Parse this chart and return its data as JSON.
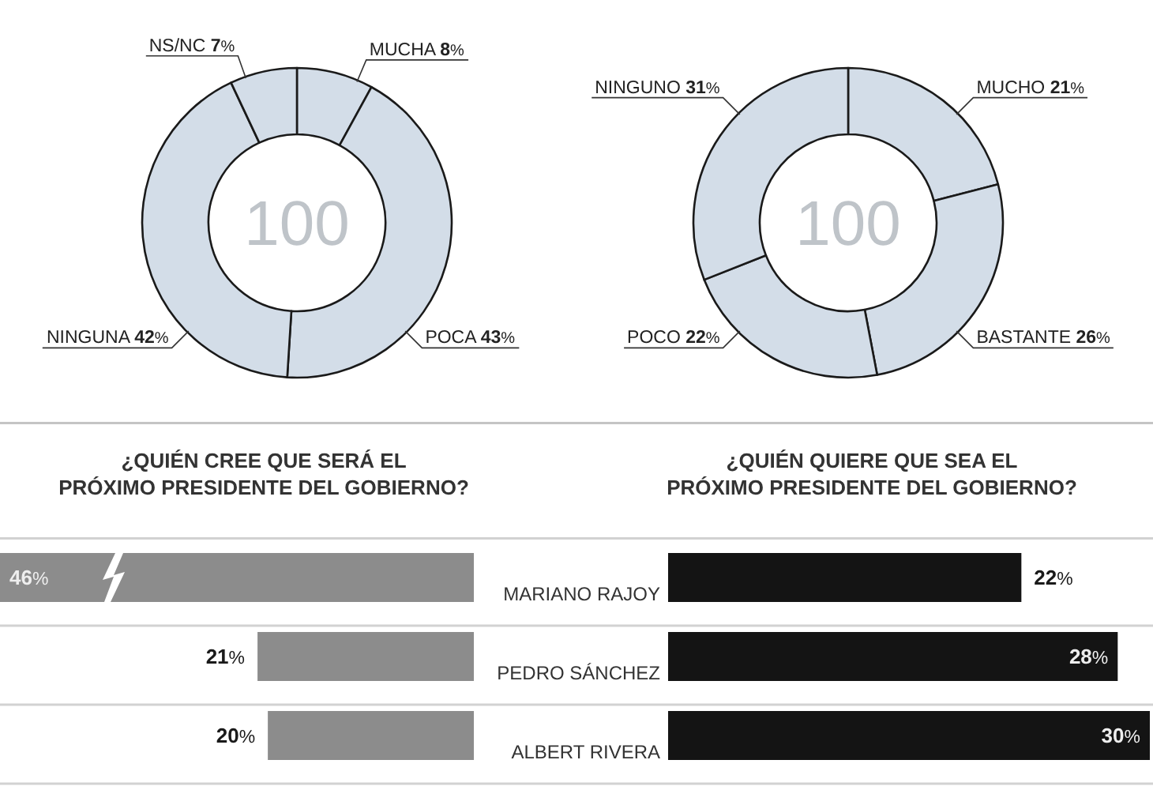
{
  "chart_data": [
    {
      "type": "donut",
      "categories": [
        "MUCHA",
        "POCA",
        "NINGUNA",
        "NS/NC"
      ],
      "values": [
        8,
        43,
        42,
        7
      ],
      "value_labels": [
        "8%",
        "43%",
        "42%",
        "7%"
      ],
      "colors": [
        "#d3dde8",
        "#d3dde8",
        "#d3dde8",
        "#d3dde8"
      ],
      "annotations": [
        "100"
      ]
    },
    {
      "type": "donut",
      "categories": [
        "MUCHO",
        "BASTANTE",
        "POCO",
        "NINGUNO"
      ],
      "values": [
        21,
        26,
        22,
        31
      ],
      "value_labels": [
        "21%",
        "26%",
        "22%",
        "31%"
      ],
      "colors": [
        "#d3dde8",
        "#d3dde8",
        "#d3dde8",
        "#d3dde8"
      ],
      "annotations": [
        "100"
      ]
    },
    {
      "type": "bar",
      "orientation": "horizontal",
      "title": "¿QUIÉN CREE QUE SERÁ EL\nPRÓXIMO PRESIDENTE DEL GOBIERNO?",
      "categories": [
        "MARIANO RAJOY",
        "PEDRO SÁNCHEZ",
        "ALBERT RIVERA"
      ],
      "values": [
        46,
        21,
        20
      ],
      "value_labels": [
        "46%",
        "21%",
        "20%"
      ],
      "color": "#8c8c8c",
      "tick_labels": false
    },
    {
      "type": "bar",
      "orientation": "horizontal",
      "title": "¿QUIÉN QUIERE QUE SEA EL\nPRÓXIMO PRESIDENTE DEL GOBIERNO?",
      "categories": [
        "MARIANO RAJOY",
        "PEDRO SÁNCHEZ",
        "ALBERT RIVERA"
      ],
      "values": [
        22,
        28,
        30
      ],
      "value_labels": [
        "22%",
        "28%",
        "30%"
      ],
      "color": "#141414"
    }
  ]
}
